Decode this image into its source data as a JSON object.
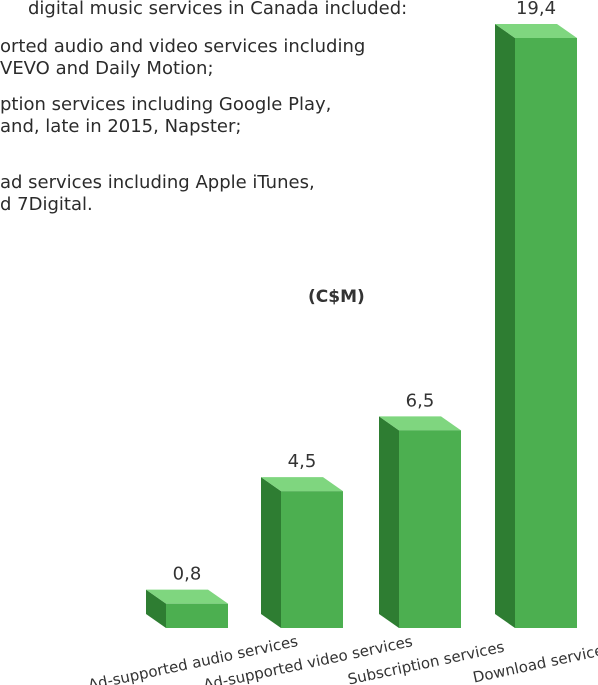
{
  "intro": {
    "lines": [
      "digital music services in Canada included:",
      "orted audio and video services including",
      "VEVO and Daily Motion;",
      "ption services including Google Play,",
      "and, late in 2015, Napster;",
      "ad services including Apple iTunes,",
      "d 7Digital."
    ]
  },
  "chart_data": {
    "type": "bar",
    "unit_label": "(C$M)",
    "categories": [
      "Ad-supported audio services",
      "Ad-supported video services",
      "Subscription services",
      "Download services"
    ],
    "values": [
      0.8,
      4.5,
      6.5,
      19.4
    ],
    "value_labels": [
      "0,8",
      "4,5",
      "6,5",
      "19,4"
    ],
    "colors": {
      "front": "#4CAF50",
      "side": "#2E7D32",
      "top": "#7FD67F",
      "label": "#333333"
    },
    "ylim": [
      0,
      19.4
    ],
    "grid": false,
    "legend": "none"
  }
}
